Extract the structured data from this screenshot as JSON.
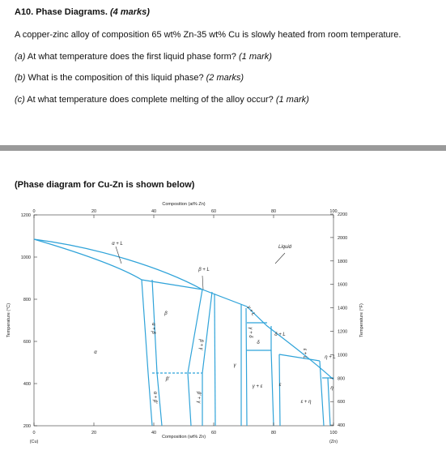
{
  "header": {
    "title": "A10. Phase Diagrams.",
    "marks": "(4 marks)"
  },
  "question": "A copper-zinc alloy of composition 65 wt% Zn-35 wt% Cu is slowly heated from room temperature.",
  "parts": [
    {
      "label": "(a)",
      "text": "At what temperature does the first liquid phase form?",
      "marks": "(1 mark)"
    },
    {
      "label": "(b)",
      "text": "What is the composition of this liquid phase?",
      "marks": "(2 marks)"
    },
    {
      "label": "(c)",
      "text": "At what temperature does complete melting of the alloy occur?",
      "marks": "(1 mark)"
    }
  ],
  "caption": "(Phase diagram for Cu-Zn is shown below)",
  "diagram": {
    "top_axis_title": "Composition (at% Zn)",
    "top_ticks": [
      "0",
      "20",
      "40",
      "60",
      "80",
      "100"
    ],
    "bottom_ticks": [
      "0",
      "20",
      "40",
      "60",
      "80",
      "100"
    ],
    "bottom_axis_title": "Composition (wt% Zn)",
    "left_end": "(Cu)",
    "right_end": "(Zn)",
    "left_axis_title": "Temperature (°C)",
    "left_ticks": [
      "1200",
      "1000",
      "800",
      "600",
      "400",
      "200"
    ],
    "right_axis_title": "Temperature (°F)",
    "right_ticks": [
      "2200",
      "2000",
      "1800",
      "1600",
      "1400",
      "1200",
      "1000",
      "800",
      "600",
      "400"
    ],
    "phase_labels": [
      "α + L",
      "Liquid",
      "β + L",
      "β",
      "α",
      "α + β",
      "β + γ",
      "β′",
      "α + β′",
      "β′ + γ",
      "γ",
      "γ + L",
      "γ + δ",
      "δ",
      "δ + L",
      "γ + ε",
      "ε",
      "ε + L",
      "ε + η",
      "η + L",
      "η"
    ]
  }
}
